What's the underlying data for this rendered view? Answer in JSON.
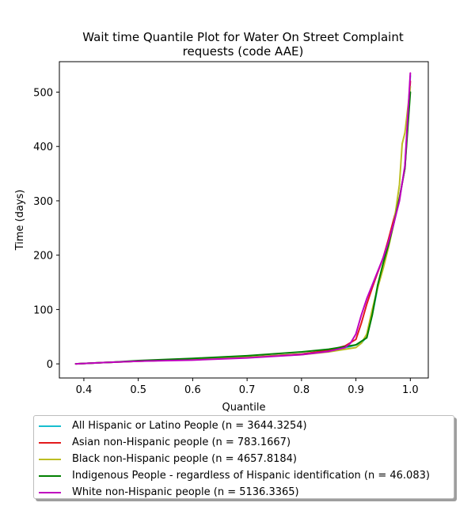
{
  "chart_data": {
    "type": "line",
    "title": "Wait time Quantile Plot for Water On Street Complaint requests (code AAE)",
    "title_lines": [
      "Wait time Quantile Plot for Water On Street Complaint",
      "requests (code AAE)"
    ],
    "xlabel": "Quantile",
    "ylabel": "Time (days)",
    "xlim": [
      0.355,
      1.033
    ],
    "ylim": [
      -26,
      556
    ],
    "xticks": [
      0.4,
      0.5,
      0.6,
      0.7,
      0.8,
      0.9,
      1.0
    ],
    "xtick_labels": [
      "0.4",
      "0.5",
      "0.6",
      "0.7",
      "0.8",
      "0.9",
      "1.0"
    ],
    "yticks": [
      0,
      100,
      200,
      300,
      400,
      500
    ],
    "ytick_labels": [
      "0",
      "100",
      "200",
      "300",
      "400",
      "500"
    ],
    "grid": false,
    "legend_position": "below",
    "series": [
      {
        "name": "All Hispanic or Latino People (n = 3644.3254)",
        "color": "#17becf",
        "x": [
          0.385,
          0.45,
          0.5,
          0.6,
          0.7,
          0.8,
          0.85,
          0.89,
          0.91,
          0.92,
          0.93,
          0.94,
          0.95,
          0.96,
          0.97,
          0.98,
          0.99,
          1.0
        ],
        "y": [
          0,
          3,
          5,
          8,
          12,
          18,
          24,
          32,
          38,
          50,
          90,
          140,
          180,
          220,
          262,
          305,
          360,
          530
        ]
      },
      {
        "name": "Asian non-Hispanic people (n = 783.1667)",
        "color": "#e31a1c",
        "x": [
          0.385,
          0.45,
          0.5,
          0.6,
          0.7,
          0.8,
          0.85,
          0.88,
          0.9,
          0.91,
          0.92,
          0.93,
          0.94,
          0.95,
          0.96,
          0.97,
          0.98,
          0.99,
          1.0
        ],
        "y": [
          0,
          3,
          5,
          8,
          12,
          18,
          25,
          33,
          45,
          75,
          110,
          140,
          168,
          195,
          230,
          268,
          305,
          360,
          520
        ]
      },
      {
        "name": "Black non-Hispanic people (n = 4657.8184)",
        "color": "#bcbd22",
        "x": [
          0.385,
          0.45,
          0.5,
          0.6,
          0.7,
          0.8,
          0.85,
          0.9,
          0.91,
          0.92,
          0.93,
          0.94,
          0.95,
          0.96,
          0.97,
          0.98,
          0.985,
          0.99,
          1.0
        ],
        "y": [
          0,
          3,
          5,
          8,
          12,
          17,
          22,
          30,
          38,
          55,
          100,
          140,
          175,
          215,
          260,
          330,
          405,
          425,
          510
        ]
      },
      {
        "name": "Indigenous People - regardless of Hispanic identification (n = 46.083)",
        "color": "#008000",
        "x": [
          0.385,
          0.45,
          0.5,
          0.6,
          0.7,
          0.8,
          0.85,
          0.9,
          0.92,
          0.93,
          0.94,
          0.95,
          0.96,
          0.97,
          0.98,
          0.99,
          1.0
        ],
        "y": [
          0,
          3,
          6,
          10,
          15,
          22,
          27,
          35,
          48,
          90,
          145,
          185,
          220,
          260,
          305,
          360,
          500
        ]
      },
      {
        "name": "White non-Hispanic people (n = 5136.3365)",
        "color": "#bf00bf",
        "x": [
          0.385,
          0.45,
          0.5,
          0.6,
          0.7,
          0.8,
          0.85,
          0.88,
          0.89,
          0.9,
          0.91,
          0.92,
          0.93,
          0.94,
          0.95,
          0.96,
          0.97,
          0.98,
          0.99,
          1.0
        ],
        "y": [
          0,
          3,
          5,
          7,
          11,
          17,
          23,
          30,
          38,
          55,
          90,
          120,
          145,
          170,
          195,
          225,
          260,
          300,
          365,
          535
        ]
      }
    ]
  }
}
